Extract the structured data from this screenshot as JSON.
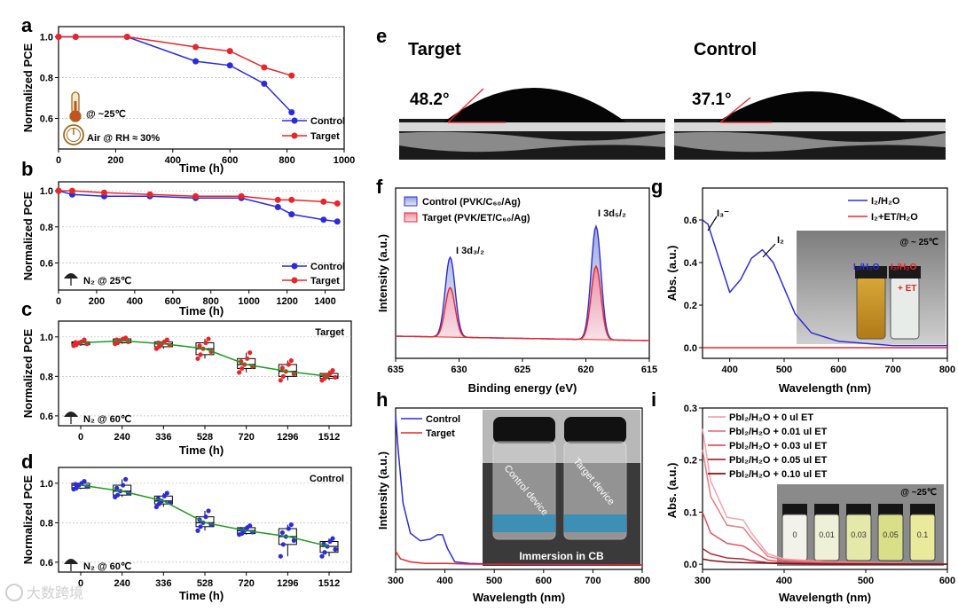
{
  "colors": {
    "blue": "#2b2bdc",
    "red": "#e8262a",
    "green": "#1f9a1f",
    "darkred": "#8b1010"
  },
  "watermark": "大数跨境",
  "panels": {
    "a": {
      "label": "a",
      "xlabel": "Time (h)",
      "ylabel": "Normalized PCE",
      "xticks": [
        "0",
        "200",
        "400",
        "600",
        "800",
        "1000"
      ],
      "yticks": [
        "0.6",
        "0.8",
        "1.0"
      ],
      "legend": [
        "Control",
        "Target"
      ],
      "cond1": "@ ~25℃",
      "cond2": "Air @ RH ≈ 30%"
    },
    "b": {
      "label": "b",
      "xlabel": "Time (h)",
      "ylabel": "Normalized PCE",
      "xticks": [
        "0",
        "200",
        "400",
        "600",
        "800",
        "1000",
        "1200",
        "1400"
      ],
      "yticks": [
        "0.6",
        "0.8",
        "1.0"
      ],
      "legend": [
        "Control",
        "Target"
      ],
      "cond": "N₂ @ 25℃"
    },
    "c": {
      "label": "c",
      "xlabel": "Time (h)",
      "ylabel": "Normalized PCE",
      "xticks": [
        "0",
        "240",
        "336",
        "528",
        "720",
        "1296",
        "1512"
      ],
      "yticks": [
        "0.6",
        "0.8",
        "1.0"
      ],
      "tag": "Target",
      "cond": "N₂ @ 60℃"
    },
    "d": {
      "label": "d",
      "xlabel": "Time (h)",
      "ylabel": "Normalized PCE",
      "xticks": [
        "0",
        "240",
        "336",
        "528",
        "720",
        "1296",
        "1512"
      ],
      "yticks": [
        "0.6",
        "0.8",
        "1.0"
      ],
      "tag": "Control",
      "cond": "N₂ @ 60℃"
    },
    "e": {
      "label": "e",
      "left_title": "Target",
      "right_title": "Control",
      "left_angle": "48.2°",
      "right_angle": "37.1°"
    },
    "f": {
      "label": "f",
      "xlabel": "Binding energy (eV)",
      "ylabel": "Intensity (a.u.)",
      "xticks": [
        "635",
        "630",
        "625",
        "620",
        "615"
      ],
      "legend1": "Control (PVK/C₆₀/Ag)",
      "legend2": "Target (PVK/ET/C₆₀/Ag)",
      "peak1": "I 3d₃/₂",
      "peak2": "I 3d₅/₂"
    },
    "g": {
      "label": "g",
      "xlabel": "Wavelength (nm)",
      "ylabel": "Abs. (a.u.)",
      "xticks": [
        "400",
        "500",
        "600",
        "700",
        "800"
      ],
      "yticks": [
        "0.0",
        "0.2",
        "0.4",
        "0.6"
      ],
      "legend1": "I₂/H₂O",
      "legend2": "I₂+ET/H₂O",
      "i3": "I₃⁻",
      "i2": "I₂",
      "photo_temp": "@ ~ 25℃",
      "photo_lab1": "I₂/H₂O",
      "photo_lab2a": "I₂/H₂O",
      "photo_lab2b": "+ ET"
    },
    "h": {
      "label": "h",
      "xlabel": "Wavelength (nm)",
      "ylabel": "Intensity (a.u.)",
      "xticks": [
        "300",
        "400",
        "500",
        "600",
        "700",
        "800"
      ],
      "legend1": "Control",
      "legend2": "Target",
      "photo_caption": "Immersion in CB",
      "photo_lab1": "Control device",
      "photo_lab2": "Target device"
    },
    "i": {
      "label": "i",
      "xlabel": "Wavelength (nm)",
      "ylabel": "Abs. (a.u.)",
      "xticks": [
        "300",
        "400",
        "500",
        "600"
      ],
      "yticks": [
        "0.0",
        "0.1",
        "0.2",
        "0.3"
      ],
      "legend": [
        "PbI₂/H₂O + 0 ul ET",
        "PbI₂/H₂O + 0.01 ul ET",
        "PbI₂/H₂O + 0.03 ul ET",
        "PbI₂/H₂O + 0.05 ul ET",
        "PbI₂/H₂O + 0.10 ul ET"
      ],
      "photo_temp": "@ ~25℃",
      "vials": [
        "0",
        "0.01",
        "0.03",
        "0.05",
        "0.1"
      ]
    }
  },
  "chart_data": [
    {
      "panel": "a",
      "type": "line",
      "xlim": [
        0,
        1000
      ],
      "ylim": [
        0.45,
        1.05
      ],
      "series": [
        {
          "name": "Control",
          "x": [
            0,
            60,
            240,
            480,
            600,
            720,
            816
          ],
          "y": [
            1.0,
            1.0,
            1.0,
            0.88,
            0.86,
            0.77,
            0.63
          ]
        },
        {
          "name": "Target",
          "x": [
            0,
            60,
            240,
            480,
            600,
            720,
            816
          ],
          "y": [
            1.0,
            1.0,
            1.0,
            0.95,
            0.93,
            0.85,
            0.81
          ]
        }
      ]
    },
    {
      "panel": "b",
      "type": "line",
      "xlim": [
        0,
        1500
      ],
      "ylim": [
        0.45,
        1.05
      ],
      "series": [
        {
          "name": "Control",
          "x": [
            0,
            72,
            240,
            480,
            720,
            960,
            1152,
            1224,
            1392,
            1464
          ],
          "y": [
            1.0,
            0.98,
            0.97,
            0.97,
            0.96,
            0.96,
            0.91,
            0.87,
            0.84,
            0.83
          ]
        },
        {
          "name": "Target",
          "x": [
            0,
            72,
            240,
            480,
            720,
            960,
            1152,
            1224,
            1392,
            1464
          ],
          "y": [
            1.0,
            1.0,
            0.99,
            0.98,
            0.97,
            0.97,
            0.95,
            0.95,
            0.94,
            0.93
          ]
        }
      ]
    },
    {
      "panel": "c",
      "type": "box",
      "categories": [
        "0",
        "240",
        "336",
        "528",
        "720",
        "1296",
        "1512"
      ],
      "ylim": [
        0.55,
        1.08
      ],
      "medians": [
        0.97,
        0.98,
        0.965,
        0.94,
        0.86,
        0.825,
        0.8
      ],
      "q1": [
        0.96,
        0.97,
        0.95,
        0.91,
        0.84,
        0.8,
        0.79
      ],
      "q3": [
        0.975,
        0.99,
        0.975,
        0.97,
        0.89,
        0.86,
        0.815
      ],
      "min": [
        0.955,
        0.965,
        0.94,
        0.89,
        0.82,
        0.78,
        0.78
      ],
      "max": [
        0.985,
        0.995,
        0.985,
        0.99,
        0.92,
        0.88,
        0.83
      ]
    },
    {
      "panel": "d",
      "type": "box",
      "categories": [
        "0",
        "240",
        "336",
        "528",
        "720",
        "1296",
        "1512"
      ],
      "ylim": [
        0.55,
        1.08
      ],
      "medians": [
        0.99,
        0.96,
        0.91,
        0.8,
        0.76,
        0.73,
        0.68
      ],
      "q1": [
        0.975,
        0.94,
        0.895,
        0.78,
        0.745,
        0.69,
        0.65
      ],
      "q3": [
        1.0,
        0.99,
        0.935,
        0.83,
        0.775,
        0.77,
        0.705
      ],
      "min": [
        0.97,
        0.93,
        0.88,
        0.76,
        0.74,
        0.63,
        0.63
      ],
      "max": [
        1.01,
        1.02,
        0.95,
        0.86,
        0.785,
        0.79,
        0.72
      ]
    },
    {
      "panel": "f",
      "type": "line",
      "xlim": [
        635,
        615
      ],
      "series": [
        {
          "name": "Control",
          "peaks": [
            {
              "center": 630.7,
              "height": 1.0
            },
            {
              "center": 619.2,
              "height": 1.42
            }
          ]
        },
        {
          "name": "Target",
          "peaks": [
            {
              "center": 630.7,
              "height": 0.62
            },
            {
              "center": 619.2,
              "height": 0.92
            }
          ]
        }
      ]
    },
    {
      "panel": "g",
      "type": "line",
      "xlim": [
        350,
        800
      ],
      "ylim": [
        -0.05,
        0.75
      ],
      "series": [
        {
          "name": "I₂/H₂O",
          "x": [
            350,
            360,
            380,
            400,
            420,
            440,
            460,
            480,
            500,
            520,
            550,
            600,
            650,
            700,
            800
          ],
          "y": [
            0.6,
            0.58,
            0.42,
            0.26,
            0.32,
            0.42,
            0.46,
            0.4,
            0.28,
            0.16,
            0.07,
            0.03,
            0.02,
            0.01,
            0.01
          ]
        },
        {
          "name": "I₂+ET/H₂O",
          "x": [
            350,
            400,
            500,
            600,
            700,
            800
          ],
          "y": [
            0.0,
            0.0,
            0.0,
            0.0,
            0.0,
            0.0
          ]
        }
      ]
    },
    {
      "panel": "h",
      "type": "line",
      "xlim": [
        300,
        800
      ],
      "series": [
        {
          "name": "Control",
          "x": [
            300,
            305,
            315,
            330,
            350,
            370,
            385,
            395,
            405,
            420,
            450,
            500,
            600,
            800
          ],
          "y": [
            1.0,
            0.78,
            0.42,
            0.22,
            0.17,
            0.18,
            0.21,
            0.21,
            0.12,
            0.03,
            0.02,
            0.015,
            0.01,
            0.01
          ]
        },
        {
          "name": "Target",
          "x": [
            300,
            310,
            330,
            360,
            400,
            450,
            800
          ],
          "y": [
            0.1,
            0.05,
            0.03,
            0.02,
            0.02,
            0.015,
            0.01
          ]
        }
      ]
    },
    {
      "panel": "i",
      "type": "line",
      "xlim": [
        300,
        600
      ],
      "ylim": [
        -0.01,
        0.3
      ],
      "series": [
        {
          "name": "0 ul ET",
          "x": [
            300,
            310,
            330,
            350,
            360,
            380,
            400,
            450,
            600
          ],
          "y": [
            0.26,
            0.16,
            0.09,
            0.085,
            0.06,
            0.02,
            0.01,
            0.005,
            0.0
          ]
        },
        {
          "name": "0.01 ul ET",
          "x": [
            300,
            310,
            330,
            350,
            360,
            380,
            400,
            450,
            600
          ],
          "y": [
            0.22,
            0.13,
            0.075,
            0.07,
            0.05,
            0.015,
            0.008,
            0.004,
            0.0
          ]
        },
        {
          "name": "0.03 ul ET",
          "x": [
            300,
            310,
            330,
            350,
            360,
            380,
            400,
            450,
            600
          ],
          "y": [
            0.1,
            0.06,
            0.04,
            0.035,
            0.025,
            0.008,
            0.004,
            0.002,
            0.0
          ]
        },
        {
          "name": "0.05 ul ET",
          "x": [
            300,
            310,
            330,
            350,
            360,
            380,
            400,
            450,
            600
          ],
          "y": [
            0.03,
            0.02,
            0.012,
            0.01,
            0.007,
            0.003,
            0.002,
            0.001,
            0.0
          ]
        },
        {
          "name": "0.10 ul ET",
          "x": [
            300,
            310,
            330,
            350,
            380,
            400,
            450,
            600
          ],
          "y": [
            0.01,
            0.007,
            0.004,
            0.003,
            0.002,
            0.001,
            0.0,
            0.0
          ]
        }
      ]
    }
  ]
}
